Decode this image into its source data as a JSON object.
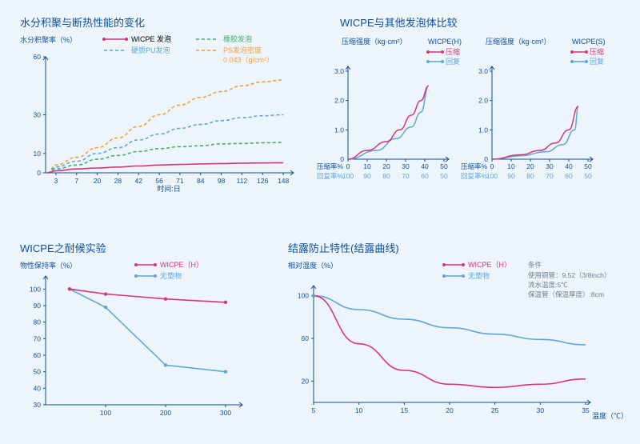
{
  "colors": {
    "primary": "#0a4f9e",
    "pink": "#d9337a",
    "blue": "#5aa7d8",
    "green": "#3eae6a",
    "orange": "#ef9f3a",
    "axis": "#0a4f9e",
    "bg": "#edf5fb",
    "gray": "#6b7f92"
  },
  "chart1": {
    "title": "水分积聚与断热性能的变化",
    "ylabel": "水分积聚率（%）",
    "xlabel": "时间:日",
    "legend": [
      {
        "label": "WICPE 发泡",
        "color": "#d9337a",
        "dash": null
      },
      {
        "label": "橡胶发泡",
        "color": "#3eae6a",
        "dash": "4 3"
      },
      {
        "label": "硬质PU发泡",
        "color": "#5aa7d8",
        "dash": "4 3"
      },
      {
        "label": "PS发泡密度",
        "color": "#ef9f3a",
        "dash": "4 3"
      }
    ],
    "legend_extra": "0.043（g/cm²）",
    "xticks": [
      "3",
      "7",
      "20",
      "28",
      "42",
      "56",
      "71",
      "84",
      "98",
      "112",
      "126",
      "148"
    ],
    "yticks": [
      0,
      10,
      30,
      60
    ],
    "ylim": [
      0,
      60
    ],
    "series": {
      "wicpe": [
        0,
        1,
        2,
        2.5,
        3,
        3.5,
        4,
        4.3,
        4.6,
        4.8,
        5,
        5.1,
        5.2
      ],
      "rubber": [
        0,
        2,
        4,
        7,
        9,
        11,
        12.5,
        13.5,
        14,
        15,
        15.2,
        15.5,
        15.7
      ],
      "pu": [
        0,
        3,
        6,
        10,
        13,
        17,
        20,
        23,
        25,
        27,
        28.5,
        29.5,
        30
      ],
      "ps": [
        0,
        4,
        8,
        13,
        18,
        24,
        30,
        35,
        39,
        42,
        45,
        47,
        48
      ]
    }
  },
  "chart2": {
    "title": "WICPE与其他发泡体比较",
    "ylabel": "压缩强度（kg·cm²）",
    "legend": [
      {
        "label": "压缩",
        "color": "#d9337a"
      },
      {
        "label": "回复",
        "color": "#5aa7d8"
      }
    ],
    "panels": [
      {
        "name": "WICPE(H)",
        "yticks": [
          "0",
          "1.0",
          "2.0",
          "3.0"
        ],
        "xticks_top": [
          "0",
          "10",
          "20",
          "30",
          "40",
          "50"
        ],
        "xticks_bot": [
          "100",
          "90",
          "80",
          "70",
          "60",
          "50"
        ],
        "xlabel_top": "压缩率%",
        "xlabel_bot": "回复率%",
        "compress": [
          [
            0,
            0
          ],
          [
            10,
            0.3
          ],
          [
            20,
            0.6
          ],
          [
            27,
            1.0
          ],
          [
            33,
            1.5
          ],
          [
            38,
            2.0
          ],
          [
            42,
            2.5
          ]
        ],
        "recover": [
          [
            0,
            0
          ],
          [
            15,
            0.3
          ],
          [
            25,
            0.7
          ],
          [
            33,
            1.1
          ],
          [
            38,
            1.6
          ],
          [
            42,
            2.5
          ]
        ]
      },
      {
        "name": "WICPE(S)",
        "yticks": [
          "0",
          "1.0",
          "2.0",
          "3.0"
        ],
        "xticks_top": [
          "0",
          "10",
          "20",
          "30",
          "40",
          "50"
        ],
        "xticks_bot": [
          "100",
          "90",
          "80",
          "70",
          "60",
          "50"
        ],
        "xlabel_top": "压缩率%",
        "xlabel_bot": "回复率%",
        "compress": [
          [
            0,
            0
          ],
          [
            15,
            0.15
          ],
          [
            25,
            0.3
          ],
          [
            33,
            0.55
          ],
          [
            40,
            1.0
          ],
          [
            45,
            1.8
          ]
        ],
        "recover": [
          [
            0,
            0
          ],
          [
            15,
            0.12
          ],
          [
            28,
            0.25
          ],
          [
            37,
            0.5
          ],
          [
            43,
            1.0
          ],
          [
            45,
            1.8
          ]
        ]
      }
    ]
  },
  "chart3": {
    "title": "WICPE之耐候实验",
    "ylabel": "物性保持率（%）",
    "legend": [
      {
        "label": "WICPE（H）",
        "color": "#d9337a"
      },
      {
        "label": "无垫物",
        "color": "#5aa7d8"
      }
    ],
    "xticks": [
      "100",
      "200",
      "300"
    ],
    "yticks": [
      30,
      40,
      50,
      60,
      70,
      80,
      90,
      100
    ],
    "ylim": [
      30,
      105
    ],
    "series": {
      "wicpe": [
        [
          40,
          100
        ],
        [
          100,
          97
        ],
        [
          200,
          94
        ],
        [
          300,
          92
        ]
      ],
      "bare": [
        [
          40,
          100
        ],
        [
          100,
          89
        ],
        [
          200,
          54
        ],
        [
          300,
          50
        ]
      ]
    }
  },
  "chart4": {
    "title": "结露防止特性(结露曲线)",
    "ylabel": "相对湿度（%）",
    "xlabel": "温度（℃）",
    "legend": [
      {
        "label": "WICPE（H）",
        "color": "#d9337a"
      },
      {
        "label": "无垫物",
        "color": "#5aa7d8"
      }
    ],
    "conditions_label": "条件",
    "conditions": [
      "使用铜管：9.52（3/8inch）",
      "流水温度:5℃",
      "保温管（保温厚度）:8cm"
    ],
    "xticks": [
      "5",
      "10",
      "15",
      "20",
      "25",
      "30",
      "35"
    ],
    "yticks": [
      20,
      60,
      100
    ],
    "ylim": [
      0,
      105
    ],
    "series": {
      "wicpe": [
        [
          5,
          100
        ],
        [
          10,
          55
        ],
        [
          15,
          30
        ],
        [
          20,
          17
        ],
        [
          25,
          14
        ],
        [
          30,
          17
        ],
        [
          35,
          22
        ]
      ],
      "bare": [
        [
          5,
          100
        ],
        [
          10,
          87
        ],
        [
          15,
          78
        ],
        [
          20,
          70
        ],
        [
          25,
          64
        ],
        [
          30,
          59
        ],
        [
          35,
          54
        ]
      ]
    }
  }
}
